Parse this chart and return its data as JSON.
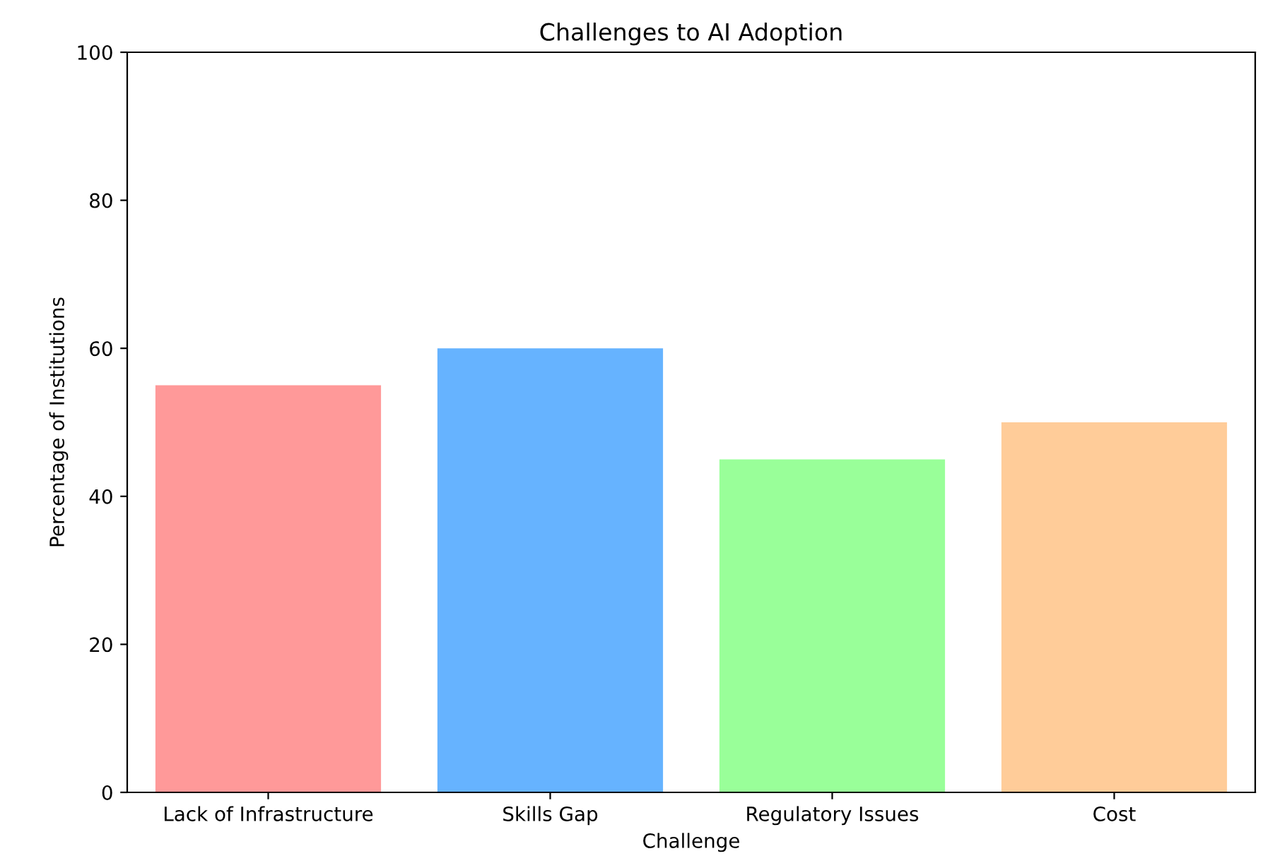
{
  "chart_data": {
    "type": "bar",
    "title": "Challenges to AI Adoption",
    "xlabel": "Challenge",
    "ylabel": "Percentage of Institutions",
    "categories": [
      "Lack of Infrastructure",
      "Skills Gap",
      "Regulatory Issues",
      "Cost"
    ],
    "values": [
      55,
      60,
      45,
      50
    ],
    "colors": [
      "#ff9999",
      "#66b3ff",
      "#99ff99",
      "#ffcc99"
    ],
    "ylim": [
      0,
      100
    ],
    "yticks": [
      0,
      20,
      40,
      60,
      80,
      100
    ],
    "grid": false
  }
}
